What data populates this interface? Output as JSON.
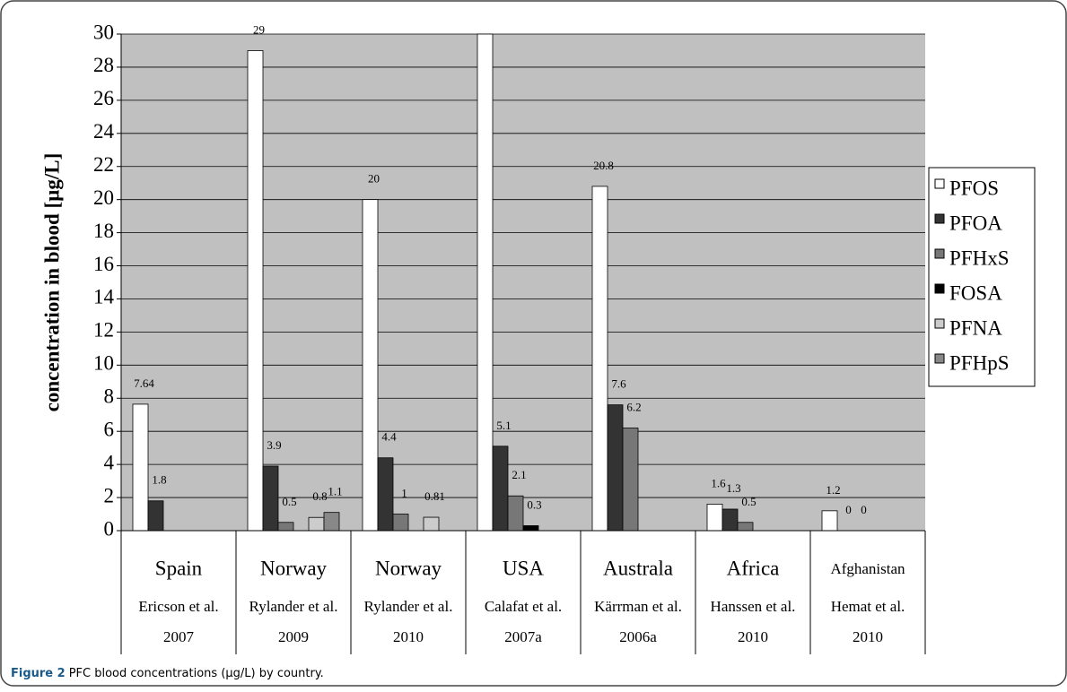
{
  "chart_data": {
    "type": "bar",
    "ylabel": "concentration in blood [µg/L]",
    "categories": [
      "Spain",
      "Norway",
      "Norway",
      "USA",
      "Australa",
      "Africa",
      "Afghanistan"
    ],
    "references": [
      "Ericson et al. 2007",
      "Rylander et al. 2009",
      "Rylander et al. 2010",
      "Calafat et al. 2007a",
      "Kärrman et al. 2006a",
      "Hanssen et al. 2010",
      "Hemat et al. 2010"
    ],
    "series": [
      {
        "name": "PFOS",
        "color": "#ffffff",
        "values": [
          7.64,
          29,
          20,
          30,
          20.8,
          1.6,
          1.2
        ]
      },
      {
        "name": "PFOA",
        "color": "#333333",
        "values": [
          1.8,
          3.9,
          4.4,
          5.1,
          7.6,
          1.3,
          0
        ]
      },
      {
        "name": "PFHxS",
        "color": "#777777",
        "values": [
          null,
          0.5,
          1,
          2.1,
          6.2,
          0.5,
          0
        ]
      },
      {
        "name": "FOSA",
        "color": "#000000",
        "values": [
          null,
          null,
          null,
          0.3,
          null,
          null,
          null
        ]
      },
      {
        "name": "PFNA",
        "color": "#cccccc",
        "values": [
          null,
          0.8,
          0.81,
          null,
          null,
          null,
          null
        ]
      },
      {
        "name": "PFHpS",
        "color": "#888888",
        "values": [
          null,
          1.1,
          null,
          null,
          null,
          null,
          null
        ]
      }
    ],
    "ylim": [
      0,
      30
    ],
    "yticks": [
      0,
      2,
      4,
      6,
      8,
      10,
      12,
      14,
      16,
      18,
      20,
      22,
      24,
      26,
      28,
      30
    ],
    "grid": true,
    "plot_background": "#c0c0c0",
    "legend": "right"
  },
  "caption": {
    "label": "Figure 2",
    "text": "PFC blood concentrations (µg/L) by country."
  }
}
